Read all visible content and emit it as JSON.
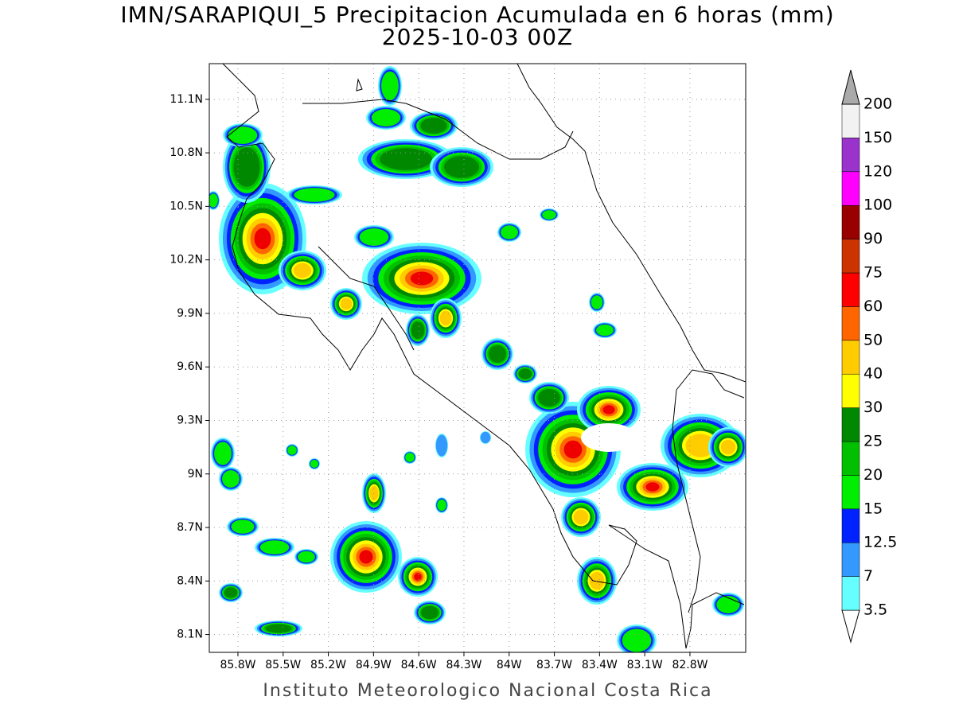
{
  "header": {
    "title": "IMN/SARAPIQUI_5 Precipitacion Acumulada en 6 horas (mm)",
    "subtitle": "2025-10-03 00Z"
  },
  "map": {
    "xlim": [
      -85.99,
      -82.43
    ],
    "ylim": [
      8.0,
      11.3
    ],
    "grid": true,
    "xticks": [
      {
        "value": -85.8,
        "label": "85.8W"
      },
      {
        "value": -85.5,
        "label": "85.5W"
      },
      {
        "value": -85.2,
        "label": "85.2W"
      },
      {
        "value": -84.9,
        "label": "84.9W"
      },
      {
        "value": -84.6,
        "label": "84.6W"
      },
      {
        "value": -84.3,
        "label": "84.3W"
      },
      {
        "value": -84.0,
        "label": "84W"
      },
      {
        "value": -83.7,
        "label": "83.7W"
      },
      {
        "value": -83.4,
        "label": "83.4W"
      },
      {
        "value": -83.1,
        "label": "83.1W"
      },
      {
        "value": -82.8,
        "label": "82.8W"
      }
    ],
    "yticks": [
      {
        "value": 11.1,
        "label": "11.1N"
      },
      {
        "value": 10.8,
        "label": "10.8N"
      },
      {
        "value": 10.5,
        "label": "10.5N"
      },
      {
        "value": 10.2,
        "label": "10.2N"
      },
      {
        "value": 9.9,
        "label": "9.9N"
      },
      {
        "value": 9.6,
        "label": "9.6N"
      },
      {
        "value": 9.3,
        "label": "9.3N"
      },
      {
        "value": 9.0,
        "label": "9N"
      },
      {
        "value": 8.7,
        "label": "8.7N"
      },
      {
        "value": 8.4,
        "label": "8.4N"
      },
      {
        "value": 8.1,
        "label": "8.1N"
      }
    ]
  },
  "colorbar": {
    "levels": [
      3.5,
      7,
      12.5,
      15,
      20,
      25,
      30,
      40,
      50,
      60,
      75,
      90,
      100,
      120,
      150,
      200
    ],
    "colors": [
      "#ffffff",
      "#66ffff",
      "#3399ff",
      "#0022ff",
      "#00ee00",
      "#00c000",
      "#008800",
      "#ffff00",
      "#ffcc00",
      "#ff6600",
      "#ff0000",
      "#cc3300",
      "#990000",
      "#ff00ff",
      "#9933cc",
      "#f2f2f2",
      "#aaaaaa"
    ]
  },
  "footer": "Instituto Meteorologico Nacional Costa Rica"
}
